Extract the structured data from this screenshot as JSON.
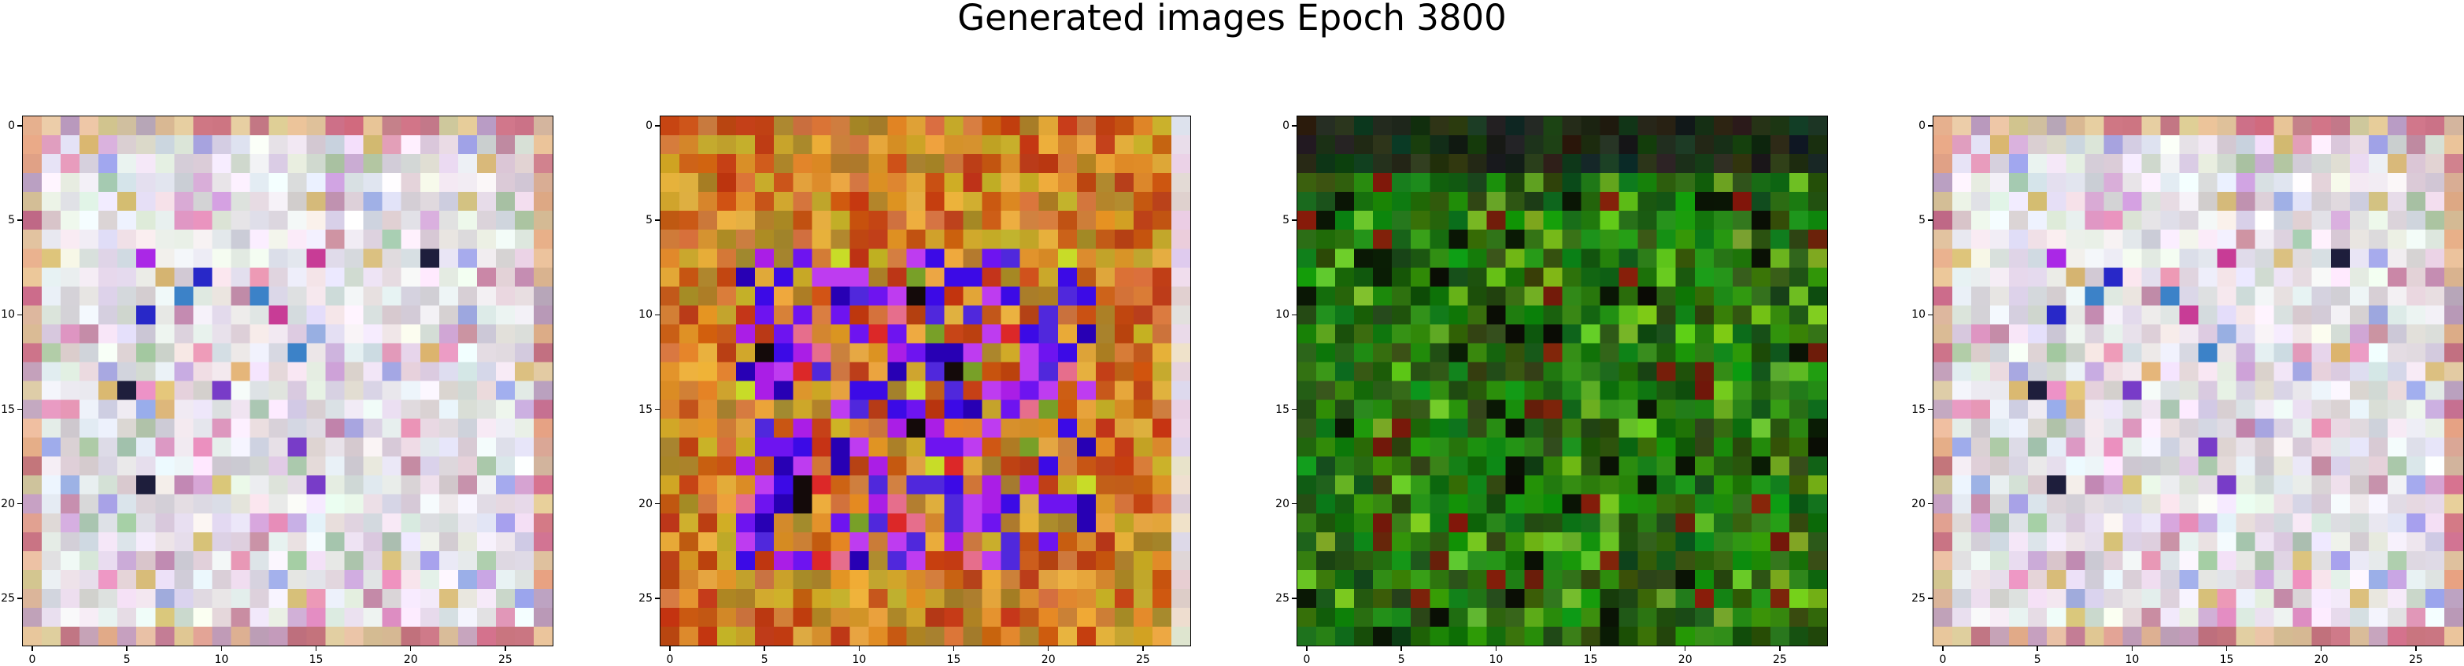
{
  "figure": {
    "title": "Generated images Epoch 3800"
  },
  "panels": [
    {
      "id": 1,
      "style": "pastel"
    },
    {
      "id": 2,
      "style": "warm-blue"
    },
    {
      "id": 3,
      "style": "green"
    },
    {
      "id": 4,
      "style": "pastel"
    }
  ],
  "axes": {
    "grid_size": 28,
    "x_tick_labels": [
      "0",
      "5",
      "10",
      "15",
      "20",
      "25"
    ],
    "y_tick_labels": [
      "0",
      "5",
      "10",
      "15",
      "20",
      "25"
    ]
  },
  "colors": {
    "background": "#ffffff",
    "axis": "#000000"
  }
}
